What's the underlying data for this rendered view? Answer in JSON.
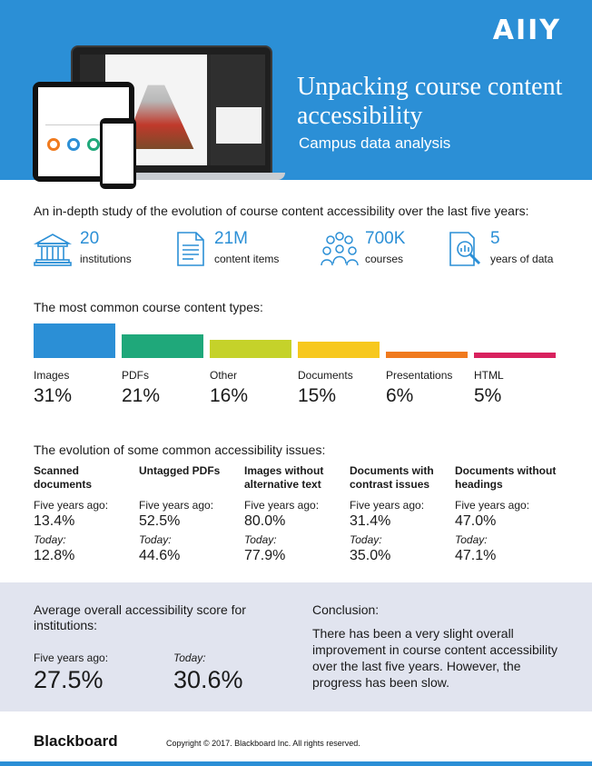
{
  "header": {
    "logo": "AIIY",
    "title": "Unpacking course content accessibility",
    "subtitle": "Campus data analysis",
    "colors": {
      "background": "#2b8fd6",
      "text": "#ffffff"
    }
  },
  "study": {
    "intro": "An in-depth study of the evolution of course content accessibility over the last five years:",
    "stats": [
      {
        "icon": "building-icon",
        "value": "20",
        "label": "institutions"
      },
      {
        "icon": "document-icon",
        "value": "21M",
        "label": "content items"
      },
      {
        "icon": "people-group-icon",
        "value": "700K",
        "label": "courses"
      },
      {
        "icon": "data-search-icon",
        "value": "5",
        "label": "years of data"
      }
    ]
  },
  "content_types": {
    "heading": "The most common course content types:",
    "items": [
      {
        "label": "Images",
        "percent": "31%",
        "value": 31,
        "color": "#2b8fd6"
      },
      {
        "label": "PDFs",
        "percent": "21%",
        "value": 21,
        "color": "#1fa87a"
      },
      {
        "label": "Other",
        "percent": "16%",
        "value": 16,
        "color": "#c5d22a"
      },
      {
        "label": "Documents",
        "percent": "15%",
        "value": 15,
        "color": "#f7c81e"
      },
      {
        "label": "Presentations",
        "percent": "6%",
        "value": 6,
        "color": "#f07a1e"
      },
      {
        "label": "HTML",
        "percent": "5%",
        "value": 5,
        "color": "#d8215e"
      }
    ]
  },
  "evolution": {
    "heading": "The evolution of some common accessibility issues:",
    "past_label": "Five years ago:",
    "today_label": "Today:",
    "issues": [
      {
        "name": "Scanned documents",
        "past": "13.4%",
        "today": "12.8%"
      },
      {
        "name": "Untagged PDFs",
        "past": "52.5%",
        "today": "44.6%"
      },
      {
        "name": "Images without alternative text",
        "past": "80.0%",
        "today": "77.9%"
      },
      {
        "name": "Documents with contrast issues",
        "past": "31.4%",
        "today": "35.0%"
      },
      {
        "name": "Documents without headings",
        "past": "47.0%",
        "today": "47.1%"
      }
    ]
  },
  "summary": {
    "avg_title": "Average overall accessibility score for institutions:",
    "past_label": "Five years ago:",
    "past_value": "27.5%",
    "today_label": "Today:",
    "today_value": "30.6%",
    "conclusion_title": "Conclusion:",
    "conclusion_text": "There has been a very slight overall improvement in course content accessibility over the last five years. However, the progress has been slow."
  },
  "footer": {
    "brand": "Blackboard",
    "copyright": "Copyright © 2017. Blackboard Inc. All rights reserved."
  }
}
